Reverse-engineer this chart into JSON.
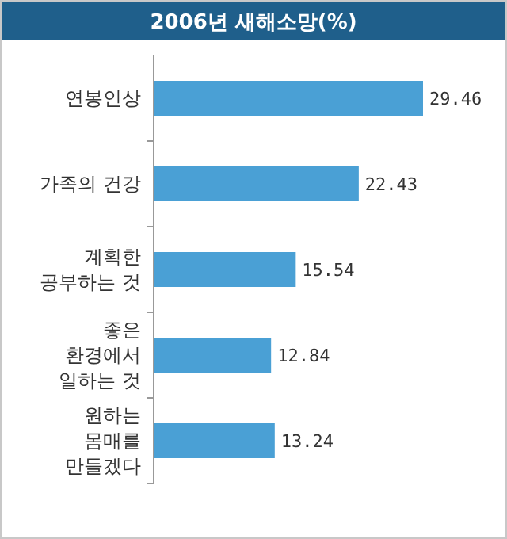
{
  "chart_data": {
    "type": "bar",
    "orientation": "horizontal",
    "title": "2006년 새해소망(%)",
    "categories": [
      "연봉인상",
      "가족의 건강",
      "계획한 공부하는 것",
      "좋은 환경에서 일하는 것",
      "원하는 몸매를 만들겠다"
    ],
    "values": [
      29.46,
      22.43,
      15.54,
      12.84,
      13.24
    ],
    "color": "#4aa0d5",
    "data_labels": true
  }
}
